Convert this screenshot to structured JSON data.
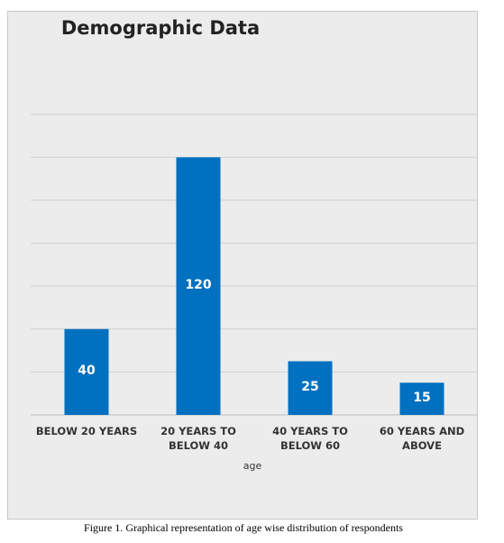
{
  "chart_data": {
    "type": "bar",
    "title": "Demographic Data",
    "xlabel": "age",
    "ylabel": "",
    "categories": [
      "BELOW 20 YEARS",
      "20 YEARS TO BELOW 40",
      "40 YEARS TO BELOW 60",
      "60 YEARS AND ABOVE"
    ],
    "values": [
      40,
      120,
      25,
      15
    ],
    "bar_heights": [
      40,
      120,
      25,
      15
    ],
    "data_labels": [
      "40",
      "120",
      "25",
      "15"
    ],
    "ylim": [
      0,
      140
    ],
    "grid": true,
    "legend": "none",
    "colors": {
      "bar": "#0070c0",
      "grid": "#d0d0d0",
      "axis": "#bfbfbf",
      "background": "#ececec"
    }
  },
  "caption": "Figure 1. Graphical representation of age wise distribution of respondents"
}
